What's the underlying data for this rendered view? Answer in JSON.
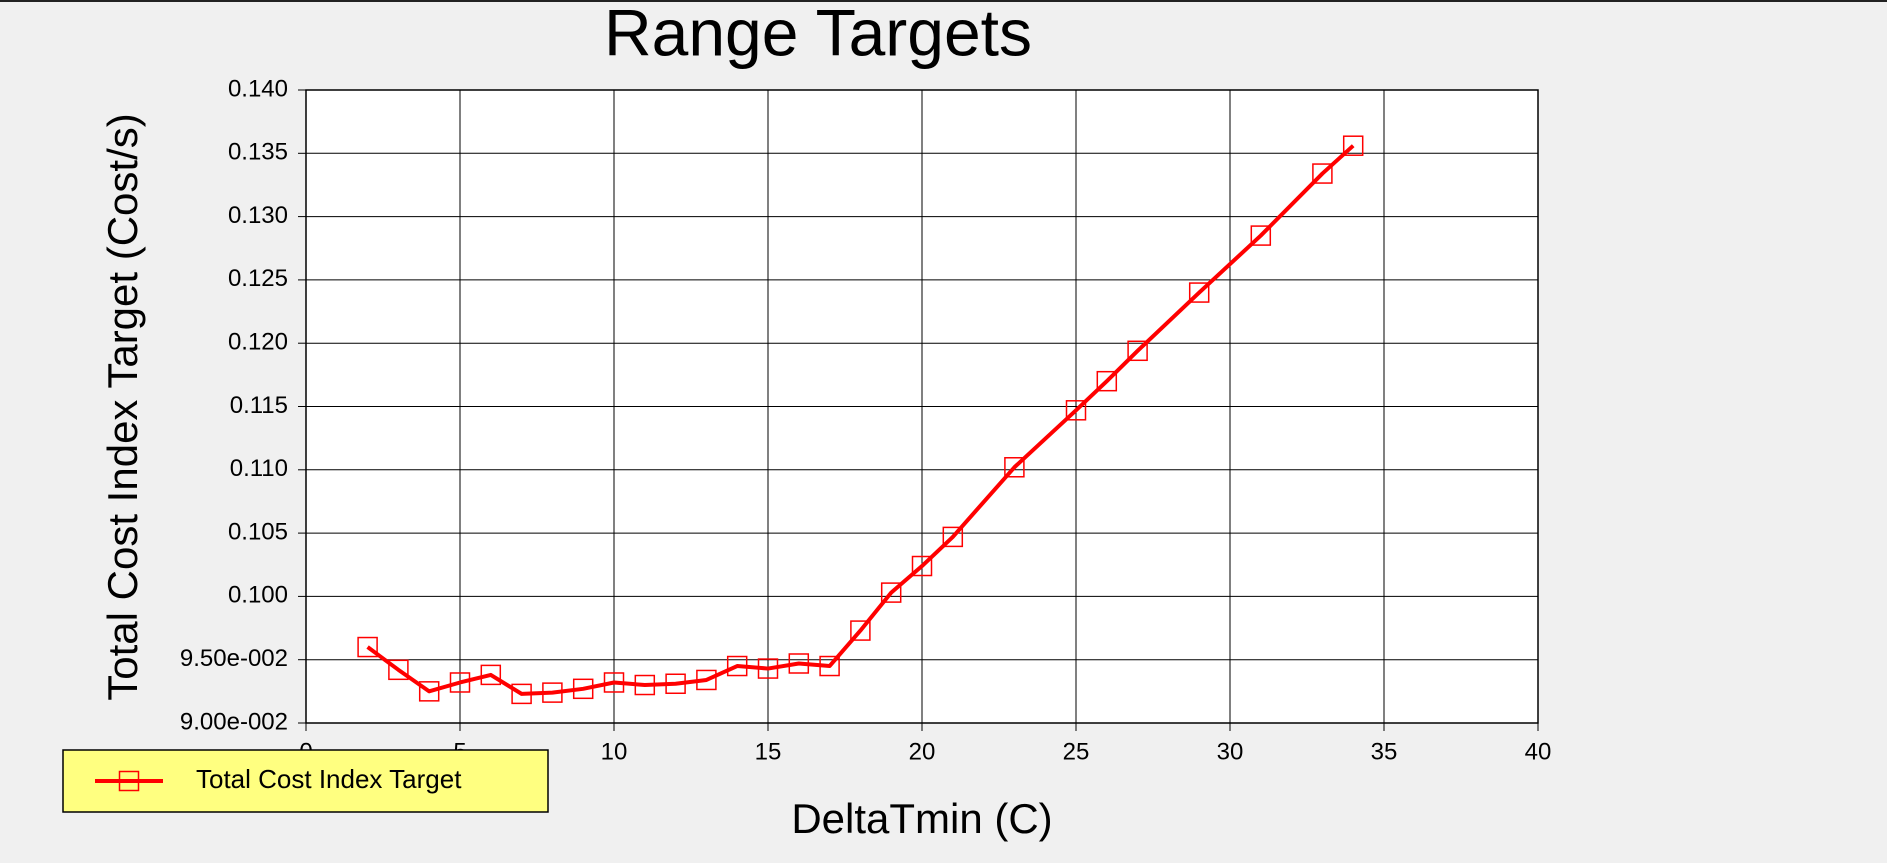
{
  "chart_data": {
    "type": "line",
    "title": "Range Targets",
    "x_label": "DeltaTmin (C)",
    "y_label": "Total Cost Index Target (Cost/s)",
    "x": [
      2,
      3,
      4,
      5,
      6,
      7,
      8,
      9,
      10,
      11,
      12,
      13,
      14,
      15,
      16,
      17,
      18,
      19,
      20,
      21,
      23,
      25,
      26,
      27,
      29,
      31,
      33,
      34
    ],
    "series": [
      {
        "name": "Total Cost Index Target",
        "color": "#ff0000",
        "values": [
          0.096,
          0.0942,
          0.0925,
          0.0932,
          0.0938,
          0.0923,
          0.0924,
          0.0927,
          0.0932,
          0.093,
          0.0931,
          0.0934,
          0.0945,
          0.0943,
          0.0947,
          0.0945,
          0.0973,
          0.1003,
          0.1024,
          0.1047,
          0.1102,
          0.1147,
          0.117,
          0.1194,
          0.124,
          0.1285,
          0.1334,
          0.1356
        ]
      }
    ],
    "xlim": [
      0,
      40
    ],
    "xticks": [
      0,
      5,
      10,
      15,
      20,
      25,
      30,
      35,
      40
    ],
    "ylim": [
      0.09,
      0.14
    ],
    "yticks": [
      {
        "value": 0.09,
        "label": "9.00e-002"
      },
      {
        "value": 0.095,
        "label": "9.50e-002"
      },
      {
        "value": 0.1,
        "label": "0.100"
      },
      {
        "value": 0.105,
        "label": "0.105"
      },
      {
        "value": 0.11,
        "label": "0.110"
      },
      {
        "value": 0.115,
        "label": "0.115"
      },
      {
        "value": 0.12,
        "label": "0.120"
      },
      {
        "value": 0.125,
        "label": "0.125"
      },
      {
        "value": 0.13,
        "label": "0.130"
      },
      {
        "value": 0.135,
        "label": "0.135"
      },
      {
        "value": 0.14,
        "label": "0.140"
      }
    ],
    "grid": true,
    "legend": "bottom-left"
  }
}
